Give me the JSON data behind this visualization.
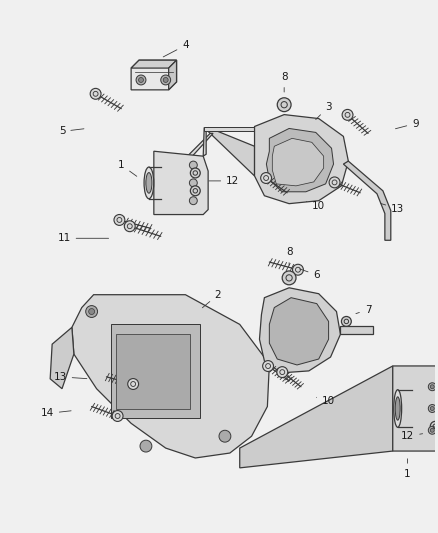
{
  "bg_color": "#f0f0f0",
  "line_color": "#3a3a3a",
  "label_color": "#1a1a1a",
  "fig_width": 4.38,
  "fig_height": 5.33,
  "dpi": 100,
  "label_fs": 7.5,
  "line_width": 0.9
}
